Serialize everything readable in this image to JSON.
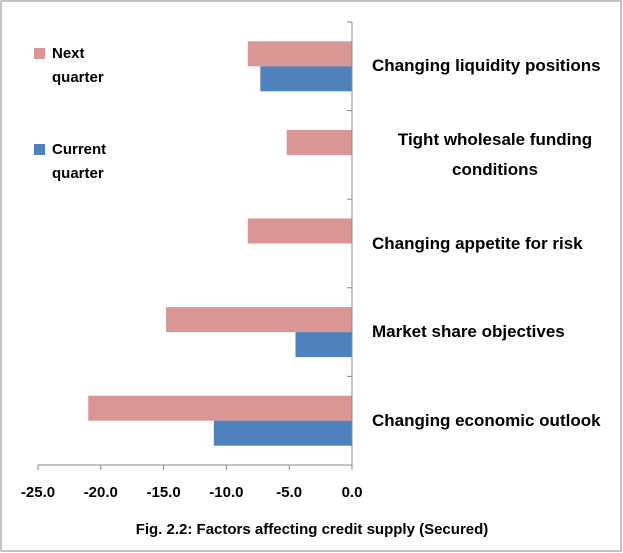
{
  "chart_data": {
    "type": "hbar",
    "title": "Fig. 2.2: Factors affecting credit supply (Secured)",
    "categories": [
      "Changing liquidity positions",
      "Tight wholesale funding conditions",
      "Changing appetite for risk",
      "Market share objectives",
      "Changing economic outlook"
    ],
    "series": [
      {
        "name": "Next quarter",
        "color": "#d99694",
        "values": [
          -8.3,
          -5.2,
          -8.3,
          -14.8,
          -21.0
        ]
      },
      {
        "name": "Current quarter",
        "color": "#4f81bd",
        "values": [
          -7.3,
          null,
          null,
          -4.5,
          -11.0
        ]
      }
    ],
    "xlim": [
      -25,
      0
    ],
    "xticks": [
      {
        "value": -25,
        "label": "-25.0"
      },
      {
        "value": -20,
        "label": "-20.0"
      },
      {
        "value": -15,
        "label": "-15.0"
      },
      {
        "value": -10,
        "label": "-10.0"
      },
      {
        "value": -5,
        "label": "-5.0"
      },
      {
        "value": 0,
        "label": "0.0"
      }
    ],
    "legend": "upper-left"
  }
}
